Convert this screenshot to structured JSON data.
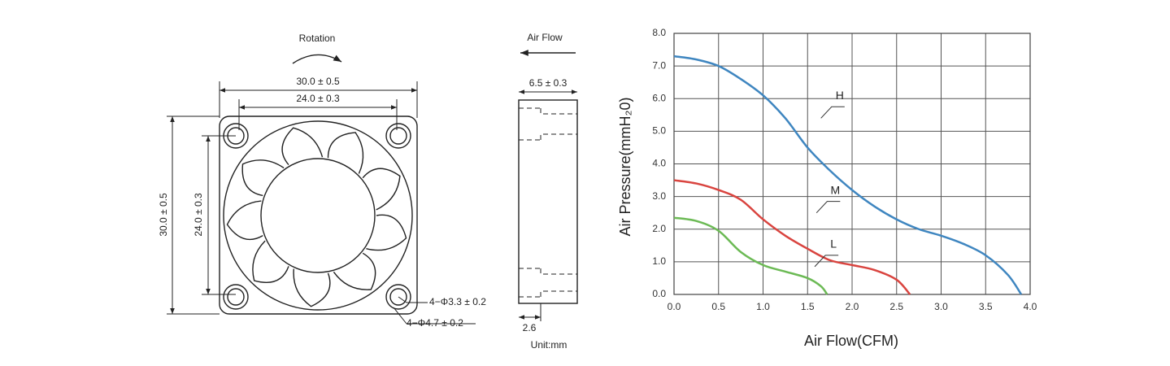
{
  "drawing": {
    "rotation": "Rotation",
    "width_outer": "30.0 ± 0.5",
    "width_inner": "24.0 ± 0.3",
    "height_outer": "30.0 ± 0.5",
    "height_inner": "24.0 ± 0.3",
    "hole_small": "4−Φ3.3 ± 0.2",
    "hole_large": "4−Φ4.7 ± 0.2",
    "air_flow": "Air Flow",
    "thickness": "6.5 ± 0.3",
    "flange": "2.6",
    "unit": "Unit:mm"
  },
  "chart_data": {
    "type": "line",
    "x_label": "Air Flow(CFM)",
    "y_label": "Air Pressure(mmH₂0)",
    "xlim": [
      0,
      4
    ],
    "ylim": [
      0,
      8
    ],
    "xticks": [
      {
        "value": 0,
        "label": "0.0"
      },
      0.5,
      {
        "value": 1,
        "label": "1.0"
      },
      1.5,
      {
        "value": 2,
        "label": "2.0"
      },
      2.5,
      {
        "value": 3,
        "label": "3.0"
      },
      3.5,
      {
        "value": 4,
        "label": "4.0"
      }
    ],
    "yticks": [
      {
        "value": 0,
        "label": "0.0"
      },
      {
        "value": 1,
        "label": "1.0"
      },
      {
        "value": 2,
        "label": "2.0"
      },
      {
        "value": 3,
        "label": "3.0"
      },
      {
        "value": 4,
        "label": "4.0"
      },
      {
        "value": 5,
        "label": "5.0"
      },
      {
        "value": 6,
        "label": "6.0"
      },
      {
        "value": 7,
        "label": "7.0"
      },
      {
        "value": 8,
        "label": "8.0"
      }
    ],
    "grid": true,
    "series": [
      {
        "name": "H",
        "color": "#3f86c0",
        "x": [
          0,
          0.25,
          0.5,
          0.75,
          1.0,
          1.25,
          1.5,
          1.75,
          2.0,
          2.25,
          2.5,
          2.75,
          3.0,
          3.25,
          3.5,
          3.75,
          3.9
        ],
        "values": [
          7.3,
          7.2,
          7.0,
          6.6,
          6.1,
          5.4,
          4.5,
          3.8,
          3.2,
          2.7,
          2.3,
          2.0,
          1.8,
          1.55,
          1.2,
          0.6,
          0
        ]
      },
      {
        "name": "M",
        "color": "#d9443f",
        "x": [
          0,
          0.25,
          0.5,
          0.75,
          1.0,
          1.25,
          1.5,
          1.75,
          2.0,
          2.25,
          2.5,
          2.65
        ],
        "values": [
          3.5,
          3.4,
          3.2,
          2.9,
          2.3,
          1.8,
          1.4,
          1.05,
          0.9,
          0.75,
          0.45,
          0
        ]
      },
      {
        "name": "L",
        "color": "#6cba55",
        "x": [
          0,
          0.25,
          0.5,
          0.75,
          1.0,
          1.25,
          1.5,
          1.65,
          1.72
        ],
        "values": [
          2.35,
          2.25,
          1.95,
          1.3,
          0.9,
          0.7,
          0.5,
          0.25,
          0
        ]
      }
    ]
  }
}
